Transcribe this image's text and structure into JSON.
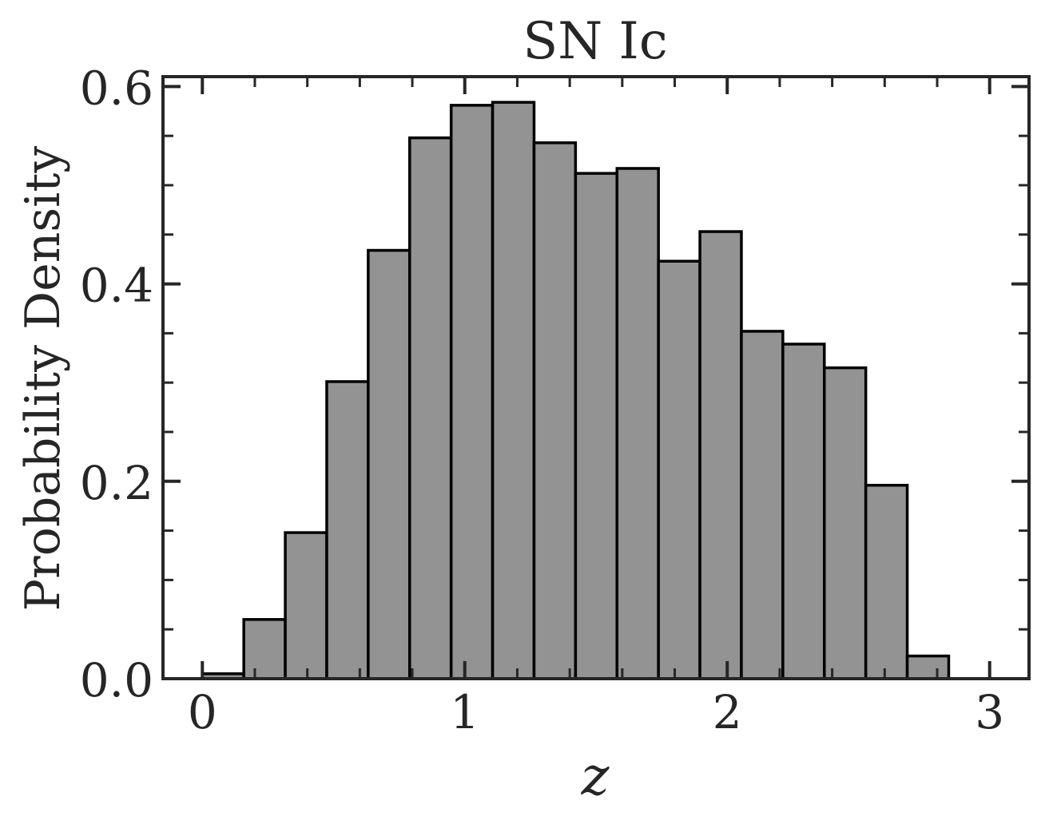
{
  "chart_data": {
    "type": "bar",
    "title": "SN Ic",
    "xlabel": "z",
    "ylabel": "Probability Density",
    "xlim": [
      -0.15,
      3.15
    ],
    "ylim": [
      0,
      0.61
    ],
    "xticks": [
      0,
      1,
      2,
      3
    ],
    "xtick_labels": [
      "0",
      "1",
      "2",
      "3"
    ],
    "yticks": [
      0.0,
      0.2,
      0.4,
      0.6
    ],
    "ytick_labels": [
      "0.0",
      "0.2",
      "0.4",
      "0.6"
    ],
    "x_minor_ticks": [
      0.2,
      0.4,
      0.6,
      0.8,
      1.2,
      1.4,
      1.6,
      1.8,
      2.2,
      2.4,
      2.6,
      2.8
    ],
    "y_minor_ticks": [
      0.05,
      0.1,
      0.15,
      0.25,
      0.3,
      0.35,
      0.45,
      0.5,
      0.55
    ],
    "grid": false,
    "bin_edges": [
      0.0,
      0.158,
      0.316,
      0.474,
      0.632,
      0.79,
      0.948,
      1.106,
      1.264,
      1.422,
      1.58,
      1.738,
      1.896,
      2.054,
      2.212,
      2.37,
      2.528,
      2.686,
      2.844
    ],
    "values": [
      0.005,
      0.06,
      0.148,
      0.301,
      0.434,
      0.548,
      0.581,
      0.584,
      0.543,
      0.512,
      0.517,
      0.423,
      0.453,
      0.352,
      0.339,
      0.315,
      0.196,
      0.023
    ],
    "colors": {
      "bar_fill": "#939393",
      "bar_edge": "#000000",
      "axes": "#262626",
      "text": "#262626"
    }
  }
}
